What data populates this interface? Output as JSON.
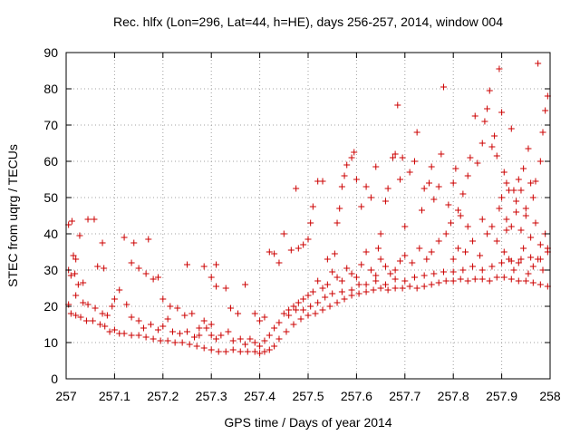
{
  "chart_data": {
    "type": "scatter",
    "title": "Rec. hlfx (Lon=296, Lat=44, h=HE), days 256-257, 2014, window 004",
    "xlabel": "GPS time / Days of year 2014",
    "ylabel": "STEC from uqrg / TECUs",
    "xlim": [
      257,
      258
    ],
    "ylim": [
      0,
      90
    ],
    "x_ticks": [
      257,
      257.1,
      257.2,
      257.3,
      257.4,
      257.5,
      257.6,
      257.7,
      257.8,
      257.9,
      258
    ],
    "x_tick_labels": [
      "257",
      "257.1",
      "257.2",
      "257.3",
      "257.4",
      "257.5",
      "257.6",
      "257.7",
      "257.8",
      "257.9",
      "258"
    ],
    "y_ticks": [
      0,
      10,
      20,
      30,
      40,
      50,
      60,
      70,
      80,
      90
    ],
    "y_tick_labels": [
      "0",
      "10",
      "20",
      "30",
      "40",
      "50",
      "60",
      "70",
      "80",
      "90"
    ],
    "grid": true,
    "marker": "plus",
    "color": "#cc0000",
    "points": [
      [
        257.005,
        42.5
      ],
      [
        257.012,
        43.5
      ],
      [
        257.005,
        30
      ],
      [
        257.01,
        28.5
      ],
      [
        257.015,
        34
      ],
      [
        257.02,
        33
      ],
      [
        257.028,
        39.5
      ],
      [
        257.018,
        29
      ],
      [
        257.025,
        26
      ],
      [
        257.035,
        26.5
      ],
      [
        257.045,
        44
      ],
      [
        257.058,
        44
      ],
      [
        257.065,
        31
      ],
      [
        257.075,
        37.5
      ],
      [
        257.078,
        30.5
      ],
      [
        257.005,
        20.5
      ],
      [
        257.01,
        18
      ],
      [
        257.02,
        17.5
      ],
      [
        257.03,
        17
      ],
      [
        257.042,
        16
      ],
      [
        257.055,
        16
      ],
      [
        257.07,
        15
      ],
      [
        257.08,
        14.5
      ],
      [
        257.09,
        13
      ],
      [
        257.1,
        13.5
      ],
      [
        257.11,
        12.5
      ],
      [
        257.12,
        12.5
      ],
      [
        257.135,
        12
      ],
      [
        257.15,
        12
      ],
      [
        257.165,
        11.5
      ],
      [
        257.18,
        11
      ],
      [
        257.195,
        10.5
      ],
      [
        257.21,
        10.5
      ],
      [
        257.225,
        10
      ],
      [
        257.24,
        10
      ],
      [
        257.255,
        9.5
      ],
      [
        257.27,
        9
      ],
      [
        257.285,
        8.5
      ],
      [
        257.3,
        8
      ],
      [
        257.315,
        7.5
      ],
      [
        257.33,
        7.5
      ],
      [
        257.345,
        8
      ],
      [
        257.36,
        7.5
      ],
      [
        257.375,
        7.5
      ],
      [
        257.39,
        7.5
      ],
      [
        257.4,
        7
      ],
      [
        257.41,
        7.5
      ],
      [
        257.42,
        8
      ],
      [
        257.43,
        9
      ],
      [
        257.44,
        11
      ],
      [
        257.455,
        13
      ],
      [
        257.47,
        15
      ],
      [
        257.485,
        16.5
      ],
      [
        257.5,
        17.5
      ],
      [
        257.515,
        18
      ],
      [
        257.53,
        19
      ],
      [
        257.545,
        20
      ],
      [
        257.56,
        21
      ],
      [
        257.575,
        22
      ],
      [
        257.59,
        23
      ],
      [
        257.605,
        23.5
      ],
      [
        257.62,
        24
      ],
      [
        257.635,
        24.5
      ],
      [
        257.65,
        25
      ],
      [
        257.665,
        24.5
      ],
      [
        257.68,
        25
      ],
      [
        257.695,
        25
      ],
      [
        257.71,
        25.5
      ],
      [
        257.725,
        25
      ],
      [
        257.74,
        25.5
      ],
      [
        257.755,
        26
      ],
      [
        257.77,
        26.5
      ],
      [
        257.785,
        27
      ],
      [
        257.8,
        27
      ],
      [
        257.815,
        27.5
      ],
      [
        257.83,
        27
      ],
      [
        257.845,
        27.5
      ],
      [
        257.86,
        27.5
      ],
      [
        257.875,
        27
      ],
      [
        257.89,
        28
      ],
      [
        257.905,
        28
      ],
      [
        257.92,
        27.5
      ],
      [
        257.935,
        27
      ],
      [
        257.95,
        27
      ],
      [
        257.965,
        26.5
      ],
      [
        257.98,
        26
      ],
      [
        257.995,
        25.5
      ],
      [
        257.02,
        23
      ],
      [
        257.035,
        21
      ],
      [
        257.045,
        20.5
      ],
      [
        257.06,
        19.5
      ],
      [
        257.075,
        18
      ],
      [
        257.085,
        17.5
      ],
      [
        257.095,
        20
      ],
      [
        257.1,
        22
      ],
      [
        257.11,
        24.5
      ],
      [
        257.125,
        20.5
      ],
      [
        257.135,
        17
      ],
      [
        257.15,
        16
      ],
      [
        257.16,
        14
      ],
      [
        257.175,
        15
      ],
      [
        257.19,
        13.5
      ],
      [
        257.2,
        14.5
      ],
      [
        257.21,
        16.5
      ],
      [
        257.22,
        13
      ],
      [
        257.235,
        12.5
      ],
      [
        257.25,
        13
      ],
      [
        257.265,
        11.5
      ],
      [
        257.275,
        12
      ],
      [
        257.29,
        14
      ],
      [
        257.3,
        12
      ],
      [
        257.31,
        11
      ],
      [
        257.32,
        12
      ],
      [
        257.335,
        13
      ],
      [
        257.345,
        10.5
      ],
      [
        257.36,
        11
      ],
      [
        257.37,
        9.5
      ],
      [
        257.38,
        11
      ],
      [
        257.39,
        10
      ],
      [
        257.4,
        9
      ],
      [
        257.41,
        10.5
      ],
      [
        257.42,
        12
      ],
      [
        257.43,
        14
      ],
      [
        257.44,
        15.5
      ],
      [
        257.45,
        18
      ],
      [
        257.46,
        17.5
      ],
      [
        257.475,
        19
      ],
      [
        257.49,
        19
      ],
      [
        257.505,
        20
      ],
      [
        257.52,
        21
      ],
      [
        257.535,
        22.5
      ],
      [
        257.55,
        23.5
      ],
      [
        257.57,
        24
      ],
      [
        257.59,
        24.5
      ],
      [
        257.605,
        26
      ],
      [
        257.62,
        26
      ],
      [
        257.64,
        27
      ],
      [
        257.66,
        26
      ],
      [
        257.68,
        27.5
      ],
      [
        257.7,
        27
      ],
      [
        257.72,
        28
      ],
      [
        257.74,
        28.5
      ],
      [
        257.76,
        29
      ],
      [
        257.78,
        29.5
      ],
      [
        257.8,
        29.5
      ],
      [
        257.82,
        30
      ],
      [
        257.84,
        31
      ],
      [
        257.86,
        30
      ],
      [
        257.88,
        31
      ],
      [
        257.9,
        32
      ],
      [
        257.92,
        32.5
      ],
      [
        257.94,
        33
      ],
      [
        257.96,
        33.5
      ],
      [
        257.98,
        33
      ],
      [
        257.12,
        39
      ],
      [
        257.14,
        37.5
      ],
      [
        257.17,
        38.5
      ],
      [
        257.135,
        32
      ],
      [
        257.15,
        30.5
      ],
      [
        257.165,
        29
      ],
      [
        257.18,
        27.5
      ],
      [
        257.19,
        28
      ],
      [
        257.2,
        22
      ],
      [
        257.215,
        20
      ],
      [
        257.23,
        19.5
      ],
      [
        257.245,
        17.5
      ],
      [
        257.26,
        18
      ],
      [
        257.275,
        14
      ],
      [
        257.285,
        16
      ],
      [
        257.3,
        15
      ],
      [
        257.31,
        31.5
      ],
      [
        257.285,
        31
      ],
      [
        257.25,
        31.5
      ],
      [
        257.3,
        28
      ],
      [
        257.31,
        25.5
      ],
      [
        257.33,
        25
      ],
      [
        257.34,
        19.5
      ],
      [
        257.355,
        18
      ],
      [
        257.37,
        26
      ],
      [
        257.39,
        18
      ],
      [
        257.4,
        16
      ],
      [
        257.41,
        17
      ],
      [
        257.42,
        35
      ],
      [
        257.43,
        34.5
      ],
      [
        257.44,
        32
      ],
      [
        257.45,
        40
      ],
      [
        257.465,
        35.5
      ],
      [
        257.475,
        52.5
      ],
      [
        257.48,
        36
      ],
      [
        257.49,
        37
      ],
      [
        257.5,
        38.5
      ],
      [
        257.505,
        43
      ],
      [
        257.51,
        47.5
      ],
      [
        257.52,
        54.5
      ],
      [
        257.53,
        54.5
      ],
      [
        257.54,
        33
      ],
      [
        257.555,
        34.5
      ],
      [
        257.56,
        43
      ],
      [
        257.565,
        47
      ],
      [
        257.57,
        53
      ],
      [
        257.575,
        56
      ],
      [
        257.58,
        59
      ],
      [
        257.59,
        61
      ],
      [
        257.595,
        62.5
      ],
      [
        257.6,
        55
      ],
      [
        257.61,
        47.5
      ],
      [
        257.62,
        53
      ],
      [
        257.63,
        50
      ],
      [
        257.64,
        58.5
      ],
      [
        257.645,
        36
      ],
      [
        257.65,
        40
      ],
      [
        257.66,
        49
      ],
      [
        257.665,
        52.5
      ],
      [
        257.675,
        61
      ],
      [
        257.68,
        62
      ],
      [
        257.685,
        75.5
      ],
      [
        257.69,
        55
      ],
      [
        257.695,
        61
      ],
      [
        257.7,
        42
      ],
      [
        257.71,
        57
      ],
      [
        257.72,
        60
      ],
      [
        257.725,
        68
      ],
      [
        257.735,
        46.5
      ],
      [
        257.74,
        52.5
      ],
      [
        257.75,
        54
      ],
      [
        257.755,
        58.5
      ],
      [
        257.76,
        49.5
      ],
      [
        257.77,
        53
      ],
      [
        257.775,
        62
      ],
      [
        257.78,
        80.5
      ],
      [
        257.79,
        48
      ],
      [
        257.8,
        54
      ],
      [
        257.805,
        58
      ],
      [
        257.81,
        46.5
      ],
      [
        257.82,
        51
      ],
      [
        257.83,
        56
      ],
      [
        257.835,
        61
      ],
      [
        257.845,
        72.5
      ],
      [
        257.85,
        59.5
      ],
      [
        257.86,
        65
      ],
      [
        257.865,
        71
      ],
      [
        257.87,
        74.5
      ],
      [
        257.875,
        79.5
      ],
      [
        257.88,
        64
      ],
      [
        257.885,
        67
      ],
      [
        257.89,
        61.5
      ],
      [
        257.895,
        85.5
      ],
      [
        257.9,
        73.5
      ],
      [
        257.905,
        57
      ],
      [
        257.91,
        54
      ],
      [
        257.915,
        52
      ],
      [
        257.92,
        69
      ],
      [
        257.925,
        52
      ],
      [
        257.93,
        49
      ],
      [
        257.935,
        55
      ],
      [
        257.94,
        52
      ],
      [
        257.945,
        58
      ],
      [
        257.95,
        47
      ],
      [
        257.955,
        63.5
      ],
      [
        257.96,
        54
      ],
      [
        257.965,
        50
      ],
      [
        257.97,
        54.5
      ],
      [
        257.975,
        87
      ],
      [
        257.98,
        60
      ],
      [
        257.985,
        68
      ],
      [
        257.99,
        74
      ],
      [
        257.995,
        78
      ],
      [
        257.91,
        44
      ],
      [
        257.92,
        42
      ],
      [
        257.93,
        46
      ],
      [
        257.94,
        41
      ],
      [
        257.95,
        45
      ],
      [
        257.96,
        39
      ],
      [
        257.97,
        43
      ],
      [
        257.98,
        37
      ],
      [
        257.99,
        40
      ],
      [
        257.995,
        36
      ],
      [
        257.86,
        44
      ],
      [
        257.87,
        40
      ],
      [
        257.88,
        42
      ],
      [
        257.89,
        38
      ],
      [
        257.895,
        47
      ],
      [
        257.9,
        50
      ],
      [
        257.905,
        35
      ],
      [
        257.91,
        41
      ],
      [
        257.915,
        33
      ],
      [
        257.925,
        30
      ],
      [
        257.935,
        32
      ],
      [
        257.945,
        36
      ],
      [
        257.955,
        29
      ],
      [
        257.965,
        31
      ],
      [
        257.975,
        33
      ],
      [
        257.985,
        30
      ],
      [
        257.995,
        35
      ],
      [
        257.785,
        40
      ],
      [
        257.795,
        43
      ],
      [
        257.81,
        36
      ],
      [
        257.825,
        35
      ],
      [
        257.84,
        38
      ],
      [
        257.855,
        34
      ],
      [
        257.83,
        42
      ],
      [
        257.815,
        45
      ],
      [
        257.8,
        33
      ],
      [
        257.77,
        38
      ],
      [
        257.755,
        35
      ],
      [
        257.745,
        33
      ],
      [
        257.73,
        36
      ],
      [
        257.715,
        32
      ],
      [
        257.7,
        34
      ],
      [
        257.69,
        32.5
      ],
      [
        257.68,
        30
      ],
      [
        257.67,
        29
      ],
      [
        257.66,
        31
      ],
      [
        257.65,
        33
      ],
      [
        257.64,
        28.5
      ],
      [
        257.63,
        30
      ],
      [
        257.62,
        35
      ],
      [
        257.61,
        31.5
      ],
      [
        257.6,
        28
      ],
      [
        257.59,
        29
      ],
      [
        257.58,
        30.5
      ],
      [
        257.57,
        27
      ],
      [
        257.56,
        28
      ],
      [
        257.55,
        29.5
      ],
      [
        257.54,
        26
      ],
      [
        257.53,
        25
      ],
      [
        257.52,
        27
      ],
      [
        257.51,
        24
      ],
      [
        257.5,
        23
      ],
      [
        257.49,
        22
      ],
      [
        257.48,
        21
      ],
      [
        257.47,
        20
      ],
      [
        257.46,
        19
      ]
    ]
  }
}
